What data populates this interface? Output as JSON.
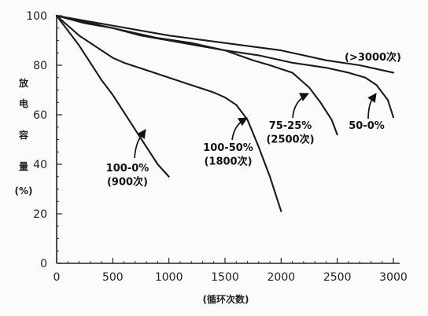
{
  "chart_data": {
    "type": "line",
    "xlabel": "(循环次数)",
    "ylabel": [
      "放",
      "电",
      "容",
      "量",
      "(%)"
    ],
    "xlim": [
      0,
      3000
    ],
    "ylim": [
      0,
      100
    ],
    "x_ticks": [
      "0",
      "500",
      "1000",
      "1500",
      "2000",
      "2500",
      "3000"
    ],
    "y_ticks": [
      "0",
      "20",
      "40",
      "60",
      "80",
      "100"
    ],
    "series": [
      {
        "label_lines": [
          "100-0%",
          "(900次)"
        ],
        "points": [
          [
            0,
            100
          ],
          [
            100,
            94
          ],
          [
            200,
            88
          ],
          [
            300,
            81
          ],
          [
            400,
            74
          ],
          [
            500,
            68
          ],
          [
            600,
            61
          ],
          [
            700,
            54
          ],
          [
            800,
            47
          ],
          [
            900,
            40
          ],
          [
            1000,
            35
          ]
        ]
      },
      {
        "label_lines": [
          "100-50%",
          "(1800次)"
        ],
        "points": [
          [
            0,
            100
          ],
          [
            100,
            96
          ],
          [
            200,
            92
          ],
          [
            300,
            89
          ],
          [
            400,
            86
          ],
          [
            500,
            83
          ],
          [
            600,
            81
          ],
          [
            800,
            78
          ],
          [
            1000,
            75
          ],
          [
            1200,
            72
          ],
          [
            1400,
            69
          ],
          [
            1500,
            67
          ],
          [
            1600,
            64
          ],
          [
            1700,
            58
          ],
          [
            1800,
            47
          ],
          [
            1900,
            35
          ],
          [
            2000,
            21
          ]
        ]
      },
      {
        "label_lines": [
          "75-25%",
          "(2500次)"
        ],
        "points": [
          [
            0,
            100
          ],
          [
            250,
            97
          ],
          [
            500,
            95
          ],
          [
            750,
            92
          ],
          [
            1000,
            90
          ],
          [
            1250,
            88
          ],
          [
            1500,
            86
          ],
          [
            1750,
            82
          ],
          [
            1900,
            80
          ],
          [
            2100,
            77
          ],
          [
            2250,
            71
          ],
          [
            2350,
            65
          ],
          [
            2450,
            58
          ],
          [
            2500,
            52
          ]
        ]
      },
      {
        "label_lines": [
          "50-0%"
        ],
        "points": [
          [
            0,
            100
          ],
          [
            300,
            97
          ],
          [
            600,
            94
          ],
          [
            900,
            91
          ],
          [
            1200,
            89
          ],
          [
            1500,
            86
          ],
          [
            1800,
            84
          ],
          [
            2100,
            81
          ],
          [
            2400,
            79
          ],
          [
            2600,
            77
          ],
          [
            2750,
            75
          ],
          [
            2850,
            72
          ],
          [
            2950,
            66
          ],
          [
            3000,
            59
          ]
        ]
      },
      {
        "label_lines": [
          "(>3000次)"
        ],
        "points": [
          [
            0,
            100
          ],
          [
            500,
            96
          ],
          [
            1000,
            92
          ],
          [
            1500,
            89
          ],
          [
            2000,
            86
          ],
          [
            2400,
            82
          ],
          [
            2700,
            80
          ],
          [
            2900,
            78
          ],
          [
            3000,
            77
          ]
        ]
      }
    ]
  }
}
